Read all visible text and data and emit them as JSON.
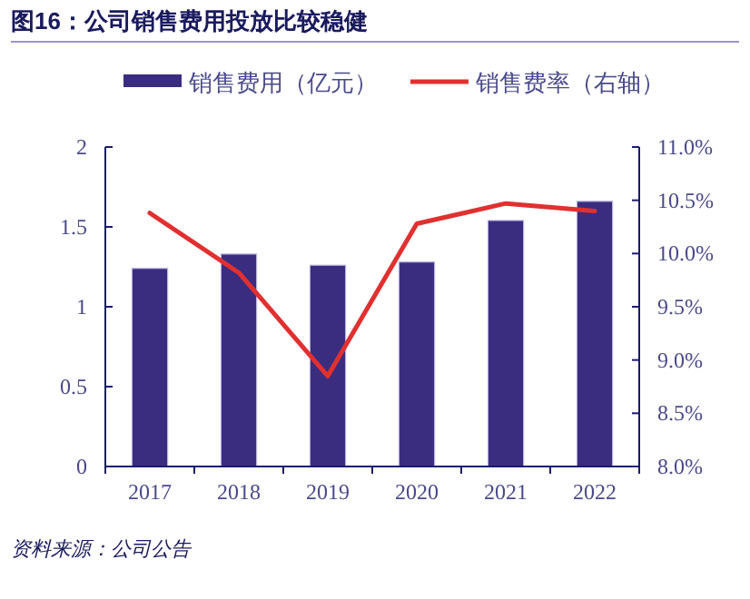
{
  "chart_data": {
    "type": "bar",
    "title": "图16：公司销售费用投放比较稳健",
    "categories": [
      "2017",
      "2018",
      "2019",
      "2020",
      "2021",
      "2022"
    ],
    "series": [
      {
        "name": "销售费用（亿元）",
        "color": "#3a2d80",
        "values": [
          1.24,
          1.33,
          1.26,
          1.28,
          1.54,
          1.66
        ]
      },
      {
        "name": "销售费率（右轴）",
        "type": "line",
        "axis": "y2",
        "color": "#e03030",
        "values": [
          10.38,
          9.82,
          8.85,
          10.28,
          10.47,
          10.4
        ]
      }
    ],
    "ylim": [
      0,
      2
    ],
    "yticks": [
      0,
      0.5,
      1,
      1.5,
      2
    ],
    "y2lim": [
      8,
      11
    ],
    "y2ticks": [
      {
        "value": 8,
        "label": "8.0%"
      },
      {
        "value": 8.5,
        "label": "8.5%"
      },
      {
        "value": 9,
        "label": "9.0%"
      },
      {
        "value": 9.5,
        "label": "9.5%"
      },
      {
        "value": 10,
        "label": "10.0%"
      },
      {
        "value": 10.5,
        "label": "10.5%"
      },
      {
        "value": 11,
        "label": "11.0%"
      }
    ],
    "legend": "top",
    "grid": false,
    "marker": "none",
    "annotations": [
      "资料来源：公司公告"
    ]
  }
}
